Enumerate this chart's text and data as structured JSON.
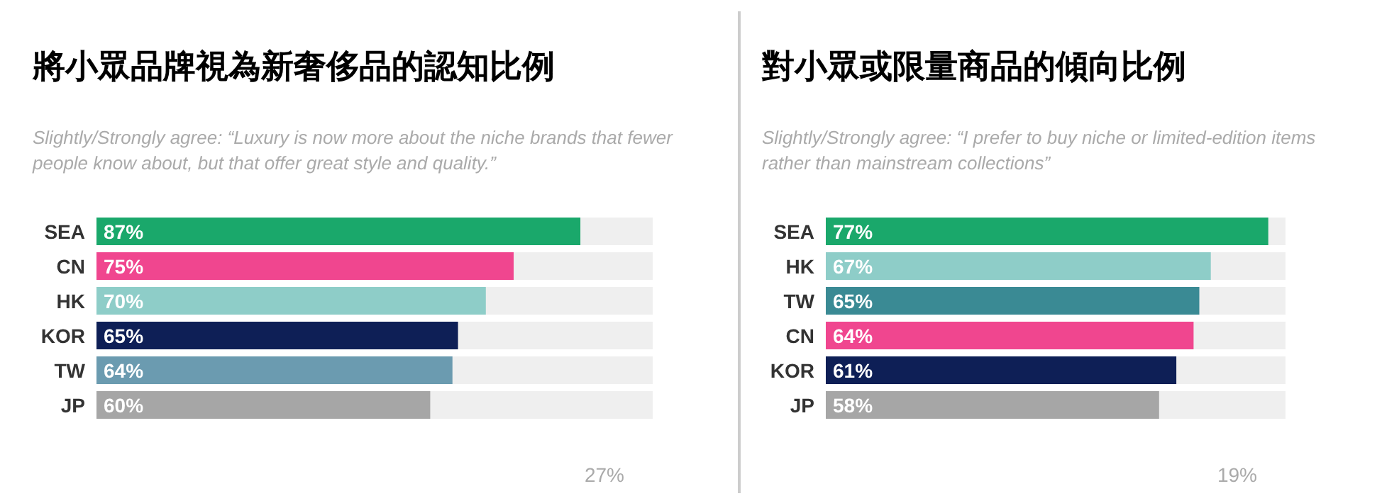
{
  "chart_data": [
    {
      "type": "bar",
      "orientation": "horizontal",
      "title": "將小眾品牌視為新奢侈品的認知比例",
      "subtitle": "Slightly/Strongly agree: “Luxury is now more about the niche brands that fewer people know about, but that offer great style and quality.”",
      "categories": [
        "SEA",
        "CN",
        "HK",
        "KOR",
        "TW",
        "JP"
      ],
      "values": [
        87,
        75,
        70,
        65,
        64,
        60
      ],
      "value_labels": [
        "87%",
        "75%",
        "70%",
        "65%",
        "64%",
        "60%"
      ],
      "colors": [
        "#1aa86b",
        "#f0468f",
        "#8ecdc8",
        "#0e1f56",
        "#6b9bb0",
        "#a6a6a6"
      ],
      "tick_labels": "y",
      "annotations": [
        "27%"
      ]
    },
    {
      "type": "bar",
      "orientation": "horizontal",
      "title": "對小眾或限量商品的傾向比例",
      "subtitle": "Slightly/Strongly agree: “I prefer to buy niche or limited-edition items rather than mainstream collections”",
      "categories": [
        "SEA",
        "HK",
        "TW",
        "CN",
        "KOR",
        "JP"
      ],
      "values": [
        77,
        67,
        65,
        64,
        61,
        58
      ],
      "value_labels": [
        "77%",
        "67%",
        "65%",
        "64%",
        "61%",
        "58%"
      ],
      "colors": [
        "#1aa86b",
        "#8ecdc8",
        "#3a8a94",
        "#f0468f",
        "#0e1f56",
        "#a6a6a6"
      ],
      "tick_labels": "y",
      "annotations": [
        "19%"
      ]
    }
  ]
}
